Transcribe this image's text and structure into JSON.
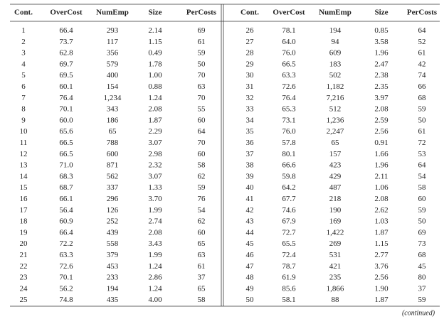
{
  "table": {
    "headers": [
      "Cont.",
      "OverCost",
      "NumEmp",
      "Size",
      "PerCosts",
      "Cont.",
      "OverCost",
      "NumEmp",
      "Size",
      "PerCosts"
    ],
    "rows": [
      [
        "1",
        "66.4",
        "293",
        "2.14",
        "69",
        "26",
        "78.1",
        "194",
        "0.85",
        "64"
      ],
      [
        "2",
        "73.7",
        "117",
        "1.15",
        "61",
        "27",
        "64.0",
        "94",
        "3.58",
        "52"
      ],
      [
        "3",
        "62.8",
        "356",
        "0.49",
        "59",
        "28",
        "76.0",
        "609",
        "1.96",
        "61"
      ],
      [
        "4",
        "69.7",
        "579",
        "1.78",
        "50",
        "29",
        "66.5",
        "183",
        "2.47",
        "42"
      ],
      [
        "5",
        "69.5",
        "400",
        "1.00",
        "70",
        "30",
        "63.3",
        "502",
        "2.38",
        "74"
      ],
      [
        "6",
        "60.1",
        "154",
        "0.88",
        "63",
        "31",
        "72.6",
        "1,182",
        "2.35",
        "66"
      ],
      [
        "7",
        "76.4",
        "1,234",
        "1.24",
        "70",
        "32",
        "76.4",
        "7,216",
        "3.97",
        "68"
      ],
      [
        "8",
        "70.1",
        "343",
        "2.08",
        "55",
        "33",
        "65.3",
        "512",
        "2.08",
        "59"
      ],
      [
        "9",
        "60.0",
        "186",
        "1.87",
        "60",
        "34",
        "73.1",
        "1,236",
        "2.59",
        "50"
      ],
      [
        "10",
        "65.6",
        "65",
        "2.29",
        "64",
        "35",
        "76.0",
        "2,247",
        "2.56",
        "61"
      ],
      [
        "11",
        "66.5",
        "788",
        "3.07",
        "70",
        "36",
        "57.8",
        "65",
        "0.91",
        "72"
      ],
      [
        "12",
        "66.5",
        "600",
        "2.98",
        "60",
        "37",
        "80.1",
        "157",
        "1.66",
        "53"
      ],
      [
        "13",
        "71.0",
        "871",
        "2.32",
        "58",
        "38",
        "66.6",
        "423",
        "1.96",
        "64"
      ],
      [
        "14",
        "68.3",
        "562",
        "3.07",
        "62",
        "39",
        "59.8",
        "429",
        "2.11",
        "54"
      ],
      [
        "15",
        "68.7",
        "337",
        "1.33",
        "59",
        "40",
        "64.2",
        "487",
        "1.06",
        "58"
      ],
      [
        "16",
        "66.1",
        "296",
        "3.70",
        "76",
        "41",
        "67.7",
        "218",
        "2.08",
        "60"
      ],
      [
        "17",
        "56.4",
        "126",
        "1.99",
        "54",
        "42",
        "74.6",
        "190",
        "2.62",
        "59"
      ],
      [
        "18",
        "60.9",
        "252",
        "2.74",
        "62",
        "43",
        "67.9",
        "169",
        "1.03",
        "50"
      ],
      [
        "19",
        "66.4",
        "439",
        "2.08",
        "60",
        "44",
        "72.7",
        "1,422",
        "1.87",
        "69"
      ],
      [
        "20",
        "72.2",
        "558",
        "3.43",
        "65",
        "45",
        "65.5",
        "269",
        "1.15",
        "73"
      ],
      [
        "21",
        "63.3",
        "379",
        "1.99",
        "63",
        "46",
        "72.4",
        "531",
        "2.77",
        "68"
      ],
      [
        "22",
        "72.6",
        "453",
        "1.24",
        "61",
        "47",
        "78.7",
        "421",
        "3.76",
        "45"
      ],
      [
        "23",
        "70.1",
        "233",
        "2.86",
        "37",
        "48",
        "61.9",
        "235",
        "2.56",
        "80"
      ],
      [
        "24",
        "56.2",
        "194",
        "1.24",
        "65",
        "49",
        "85.6",
        "1,866",
        "1.90",
        "37"
      ],
      [
        "25",
        "74.8",
        "435",
        "4.00",
        "58",
        "50",
        "58.1",
        "88",
        "1.87",
        "59"
      ]
    ],
    "footer": "(continued)"
  }
}
